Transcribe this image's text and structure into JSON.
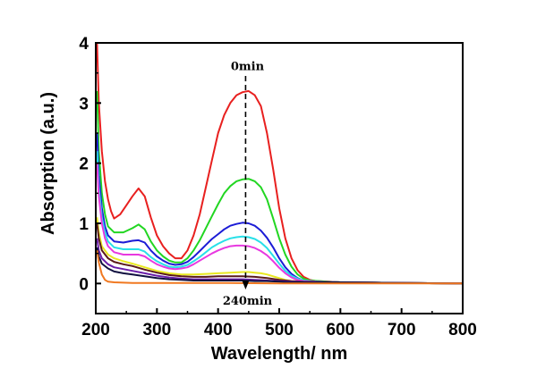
{
  "chart_data": {
    "type": "line",
    "title": "",
    "xlabel": "Wavelength/ nm",
    "ylabel": "Absorption (a.u.)",
    "xlim": [
      200,
      800
    ],
    "ylim": [
      -0.5,
      4
    ],
    "x_ticks": [
      200,
      300,
      400,
      500,
      600,
      700,
      800
    ],
    "y_ticks": [
      0,
      1,
      2,
      3,
      4
    ],
    "grid": false,
    "legend": "none",
    "annotations": [
      {
        "text": "0min",
        "x": 448,
        "y": 3.55
      },
      {
        "text": "240min",
        "x": 448,
        "y": -0.35
      }
    ],
    "arrow": {
      "x": 445,
      "y_from": 3.45,
      "y_to": -0.1
    },
    "series": [
      {
        "color": "#e8201f",
        "points": [
          [
            202,
            4.0
          ],
          [
            205,
            3.0
          ],
          [
            210,
            2.2
          ],
          [
            215,
            1.7
          ],
          [
            220,
            1.4
          ],
          [
            225,
            1.2
          ],
          [
            230,
            1.08
          ],
          [
            240,
            1.15
          ],
          [
            250,
            1.3
          ],
          [
            260,
            1.45
          ],
          [
            270,
            1.58
          ],
          [
            280,
            1.45
          ],
          [
            290,
            1.1
          ],
          [
            300,
            0.8
          ],
          [
            310,
            0.62
          ],
          [
            320,
            0.5
          ],
          [
            330,
            0.42
          ],
          [
            340,
            0.42
          ],
          [
            350,
            0.55
          ],
          [
            360,
            0.8
          ],
          [
            370,
            1.15
          ],
          [
            380,
            1.6
          ],
          [
            390,
            2.05
          ],
          [
            400,
            2.5
          ],
          [
            410,
            2.8
          ],
          [
            420,
            3.0
          ],
          [
            430,
            3.13
          ],
          [
            440,
            3.18
          ],
          [
            450,
            3.2
          ],
          [
            460,
            3.13
          ],
          [
            470,
            2.95
          ],
          [
            480,
            2.5
          ],
          [
            490,
            1.9
          ],
          [
            500,
            1.25
          ],
          [
            510,
            0.75
          ],
          [
            520,
            0.42
          ],
          [
            530,
            0.22
          ],
          [
            540,
            0.11
          ],
          [
            550,
            0.06
          ],
          [
            560,
            0.04
          ],
          [
            580,
            0.03
          ],
          [
            600,
            0.02
          ],
          [
            700,
            0.01
          ],
          [
            800,
            0.0
          ]
        ]
      },
      {
        "color": "#22d622",
        "points": [
          [
            202,
            3.2
          ],
          [
            205,
            2.2
          ],
          [
            210,
            1.5
          ],
          [
            215,
            1.15
          ],
          [
            220,
            0.95
          ],
          [
            230,
            0.85
          ],
          [
            245,
            0.85
          ],
          [
            260,
            0.92
          ],
          [
            270,
            0.98
          ],
          [
            280,
            0.9
          ],
          [
            290,
            0.7
          ],
          [
            300,
            0.55
          ],
          [
            310,
            0.45
          ],
          [
            320,
            0.38
          ],
          [
            330,
            0.35
          ],
          [
            340,
            0.35
          ],
          [
            350,
            0.42
          ],
          [
            360,
            0.55
          ],
          [
            370,
            0.72
          ],
          [
            380,
            0.92
          ],
          [
            390,
            1.12
          ],
          [
            400,
            1.32
          ],
          [
            410,
            1.5
          ],
          [
            420,
            1.62
          ],
          [
            430,
            1.7
          ],
          [
            440,
            1.73
          ],
          [
            450,
            1.74
          ],
          [
            460,
            1.7
          ],
          [
            470,
            1.6
          ],
          [
            480,
            1.4
          ],
          [
            490,
            1.08
          ],
          [
            500,
            0.75
          ],
          [
            510,
            0.48
          ],
          [
            520,
            0.28
          ],
          [
            530,
            0.15
          ],
          [
            540,
            0.08
          ],
          [
            550,
            0.05
          ],
          [
            580,
            0.03
          ],
          [
            600,
            0.02
          ],
          [
            700,
            0.01
          ],
          [
            800,
            0.0
          ]
        ]
      },
      {
        "color": "#1c1cd6",
        "points": [
          [
            202,
            2.5
          ],
          [
            205,
            1.8
          ],
          [
            210,
            1.25
          ],
          [
            215,
            0.95
          ],
          [
            220,
            0.8
          ],
          [
            230,
            0.7
          ],
          [
            245,
            0.68
          ],
          [
            260,
            0.71
          ],
          [
            270,
            0.72
          ],
          [
            280,
            0.68
          ],
          [
            290,
            0.55
          ],
          [
            300,
            0.45
          ],
          [
            310,
            0.38
          ],
          [
            320,
            0.33
          ],
          [
            330,
            0.31
          ],
          [
            340,
            0.32
          ],
          [
            350,
            0.36
          ],
          [
            360,
            0.44
          ],
          [
            370,
            0.54
          ],
          [
            380,
            0.64
          ],
          [
            390,
            0.74
          ],
          [
            400,
            0.82
          ],
          [
            410,
            0.9
          ],
          [
            420,
            0.96
          ],
          [
            430,
            0.99
          ],
          [
            440,
            1.01
          ],
          [
            450,
            1.0
          ],
          [
            460,
            0.96
          ],
          [
            470,
            0.88
          ],
          [
            480,
            0.76
          ],
          [
            490,
            0.6
          ],
          [
            500,
            0.42
          ],
          [
            510,
            0.27
          ],
          [
            520,
            0.16
          ],
          [
            530,
            0.09
          ],
          [
            540,
            0.05
          ],
          [
            560,
            0.03
          ],
          [
            600,
            0.02
          ],
          [
            700,
            0.01
          ],
          [
            800,
            0.0
          ]
        ]
      },
      {
        "color": "#28e0e8",
        "points": [
          [
            202,
            2.2
          ],
          [
            205,
            1.6
          ],
          [
            210,
            1.1
          ],
          [
            215,
            0.85
          ],
          [
            220,
            0.7
          ],
          [
            230,
            0.6
          ],
          [
            245,
            0.57
          ],
          [
            260,
            0.57
          ],
          [
            270,
            0.57
          ],
          [
            280,
            0.53
          ],
          [
            290,
            0.44
          ],
          [
            300,
            0.37
          ],
          [
            310,
            0.32
          ],
          [
            320,
            0.28
          ],
          [
            330,
            0.27
          ],
          [
            340,
            0.28
          ],
          [
            350,
            0.31
          ],
          [
            360,
            0.37
          ],
          [
            370,
            0.44
          ],
          [
            380,
            0.52
          ],
          [
            390,
            0.6
          ],
          [
            400,
            0.66
          ],
          [
            410,
            0.71
          ],
          [
            420,
            0.75
          ],
          [
            430,
            0.77
          ],
          [
            440,
            0.78
          ],
          [
            450,
            0.77
          ],
          [
            460,
            0.74
          ],
          [
            470,
            0.68
          ],
          [
            480,
            0.59
          ],
          [
            490,
            0.46
          ],
          [
            500,
            0.33
          ],
          [
            510,
            0.21
          ],
          [
            520,
            0.13
          ],
          [
            530,
            0.08
          ],
          [
            540,
            0.05
          ],
          [
            560,
            0.03
          ],
          [
            600,
            0.02
          ],
          [
            700,
            0.01
          ],
          [
            800,
            0.0
          ]
        ]
      },
      {
        "color": "#e838e0",
        "points": [
          [
            202,
            2.0
          ],
          [
            205,
            1.45
          ],
          [
            210,
            1.0
          ],
          [
            215,
            0.75
          ],
          [
            220,
            0.62
          ],
          [
            230,
            0.52
          ],
          [
            245,
            0.48
          ],
          [
            260,
            0.48
          ],
          [
            270,
            0.48
          ],
          [
            280,
            0.45
          ],
          [
            290,
            0.38
          ],
          [
            300,
            0.32
          ],
          [
            310,
            0.28
          ],
          [
            320,
            0.25
          ],
          [
            330,
            0.24
          ],
          [
            340,
            0.25
          ],
          [
            350,
            0.27
          ],
          [
            360,
            0.32
          ],
          [
            370,
            0.38
          ],
          [
            380,
            0.44
          ],
          [
            390,
            0.5
          ],
          [
            400,
            0.55
          ],
          [
            410,
            0.59
          ],
          [
            420,
            0.62
          ],
          [
            430,
            0.63
          ],
          [
            440,
            0.63
          ],
          [
            450,
            0.62
          ],
          [
            460,
            0.59
          ],
          [
            470,
            0.54
          ],
          [
            480,
            0.47
          ],
          [
            490,
            0.37
          ],
          [
            500,
            0.26
          ],
          [
            510,
            0.17
          ],
          [
            520,
            0.1
          ],
          [
            530,
            0.06
          ],
          [
            540,
            0.04
          ],
          [
            560,
            0.03
          ],
          [
            600,
            0.02
          ],
          [
            700,
            0.01
          ],
          [
            800,
            0.0
          ]
        ]
      },
      {
        "color": "#e8e820",
        "points": [
          [
            202,
            1.1
          ],
          [
            205,
            0.85
          ],
          [
            210,
            0.62
          ],
          [
            220,
            0.48
          ],
          [
            230,
            0.42
          ],
          [
            245,
            0.37
          ],
          [
            260,
            0.33
          ],
          [
            280,
            0.27
          ],
          [
            300,
            0.21
          ],
          [
            320,
            0.17
          ],
          [
            340,
            0.15
          ],
          [
            360,
            0.15
          ],
          [
            380,
            0.16
          ],
          [
            400,
            0.17
          ],
          [
            420,
            0.18
          ],
          [
            440,
            0.19
          ],
          [
            450,
            0.19
          ],
          [
            460,
            0.18
          ],
          [
            470,
            0.17
          ],
          [
            480,
            0.15
          ],
          [
            490,
            0.12
          ],
          [
            500,
            0.09
          ],
          [
            510,
            0.06
          ],
          [
            520,
            0.04
          ],
          [
            540,
            0.03
          ],
          [
            600,
            0.02
          ],
          [
            700,
            0.01
          ],
          [
            800,
            0.0
          ]
        ]
      },
      {
        "color": "#5a1a1a",
        "points": [
          [
            202,
            1.0
          ],
          [
            205,
            0.75
          ],
          [
            210,
            0.55
          ],
          [
            220,
            0.42
          ],
          [
            230,
            0.36
          ],
          [
            245,
            0.32
          ],
          [
            260,
            0.29
          ],
          [
            280,
            0.23
          ],
          [
            300,
            0.18
          ],
          [
            320,
            0.14
          ],
          [
            340,
            0.12
          ],
          [
            360,
            0.11
          ],
          [
            380,
            0.11
          ],
          [
            400,
            0.12
          ],
          [
            420,
            0.12
          ],
          [
            440,
            0.12
          ],
          [
            460,
            0.11
          ],
          [
            480,
            0.09
          ],
          [
            500,
            0.06
          ],
          [
            520,
            0.04
          ],
          [
            540,
            0.03
          ],
          [
            600,
            0.02
          ],
          [
            700,
            0.01
          ],
          [
            800,
            0.0
          ]
        ]
      },
      {
        "color": "#6a1ea8",
        "points": [
          [
            202,
            0.75
          ],
          [
            205,
            0.55
          ],
          [
            210,
            0.42
          ],
          [
            220,
            0.32
          ],
          [
            230,
            0.27
          ],
          [
            245,
            0.24
          ],
          [
            260,
            0.21
          ],
          [
            280,
            0.17
          ],
          [
            300,
            0.13
          ],
          [
            320,
            0.1
          ],
          [
            340,
            0.08
          ],
          [
            360,
            0.07
          ],
          [
            380,
            0.07
          ],
          [
            400,
            0.07
          ],
          [
            420,
            0.07
          ],
          [
            440,
            0.07
          ],
          [
            460,
            0.06
          ],
          [
            480,
            0.05
          ],
          [
            500,
            0.04
          ],
          [
            520,
            0.03
          ],
          [
            600,
            0.02
          ],
          [
            700,
            0.01
          ],
          [
            800,
            0.0
          ]
        ]
      },
      {
        "color": "#101040",
        "points": [
          [
            202,
            0.6
          ],
          [
            205,
            0.45
          ],
          [
            210,
            0.33
          ],
          [
            220,
            0.25
          ],
          [
            230,
            0.2
          ],
          [
            245,
            0.17
          ],
          [
            260,
            0.15
          ],
          [
            280,
            0.12
          ],
          [
            300,
            0.09
          ],
          [
            320,
            0.07
          ],
          [
            340,
            0.06
          ],
          [
            360,
            0.05
          ],
          [
            380,
            0.05
          ],
          [
            400,
            0.05
          ],
          [
            420,
            0.05
          ],
          [
            440,
            0.05
          ],
          [
            460,
            0.04
          ],
          [
            480,
            0.04
          ],
          [
            500,
            0.03
          ],
          [
            520,
            0.02
          ],
          [
            600,
            0.02
          ],
          [
            700,
            0.01
          ],
          [
            800,
            0.0
          ]
        ]
      },
      {
        "color": "#f07820",
        "points": [
          [
            202,
            0.55
          ],
          [
            205,
            0.35
          ],
          [
            210,
            0.15
          ],
          [
            215,
            0.06
          ],
          [
            220,
            0.03
          ],
          [
            230,
            0.02
          ],
          [
            260,
            0.01
          ],
          [
            300,
            0.01
          ],
          [
            400,
            0.01
          ],
          [
            500,
            0.0
          ],
          [
            600,
            0.0
          ],
          [
            800,
            0.0
          ]
        ]
      }
    ]
  }
}
